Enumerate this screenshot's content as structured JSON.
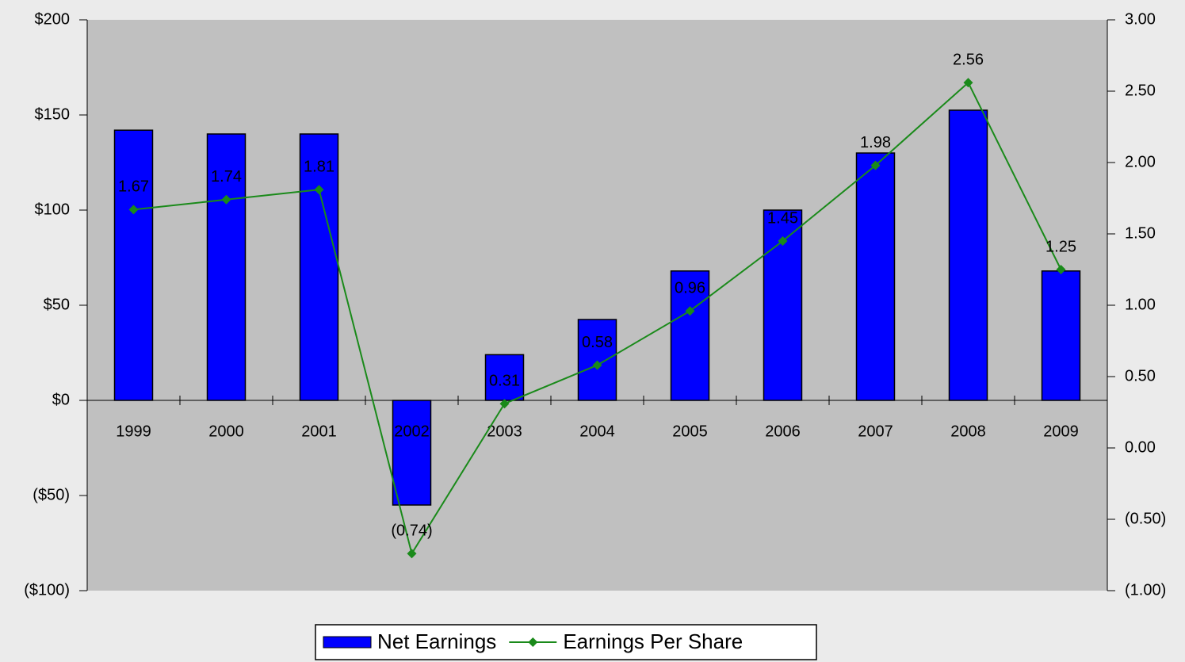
{
  "chart_data": {
    "type": "bar",
    "categories": [
      "1999",
      "2000",
      "2001",
      "2002",
      "2003",
      "2004",
      "2005",
      "2006",
      "2007",
      "2008",
      "2009"
    ],
    "series": [
      {
        "name": "Net Earnings",
        "color": "#0000ff",
        "type": "bar",
        "values": [
          142,
          140,
          140,
          -55,
          24,
          42.5,
          68,
          100,
          130,
          152.5,
          68
        ]
      },
      {
        "name": "Earnings Per Share",
        "color": "#1a8a1a",
        "type": "line",
        "axis": "y2",
        "values": [
          1.67,
          1.74,
          1.81,
          -0.74,
          0.31,
          0.58,
          0.96,
          1.45,
          1.98,
          2.56,
          1.25
        ],
        "value_labels": [
          "1.67",
          "1.74",
          "1.81",
          "(0.74)",
          "0.31",
          "0.58",
          "0.96",
          "1.45",
          "1.98",
          "2.56",
          "1.25"
        ]
      }
    ],
    "ylim": [
      -100,
      200
    ],
    "yticks": [
      {
        "value": -100,
        "label": "($100)"
      },
      {
        "value": -50,
        "label": "($50)"
      },
      {
        "value": 0,
        "label": "$0"
      },
      {
        "value": 50,
        "label": "$50"
      },
      {
        "value": 100,
        "label": "$100"
      },
      {
        "value": 150,
        "label": "$150"
      },
      {
        "value": 200,
        "label": "$200"
      }
    ],
    "y2lim": [
      -1,
      3
    ],
    "y2ticks": [
      {
        "value": -1,
        "label": "(1.00)"
      },
      {
        "value": -0.5,
        "label": "(0.50)"
      },
      {
        "value": 0,
        "label": "0.00"
      },
      {
        "value": 0.5,
        "label": "0.50"
      },
      {
        "value": 1,
        "label": "1.00"
      },
      {
        "value": 1.5,
        "label": "1.50"
      },
      {
        "value": 2,
        "label": "2.00"
      },
      {
        "value": 2.5,
        "label": "2.50"
      },
      {
        "value": 3,
        "label": "3.00"
      }
    ],
    "plot_background": "#c0c0c0",
    "legend": "bottom"
  }
}
